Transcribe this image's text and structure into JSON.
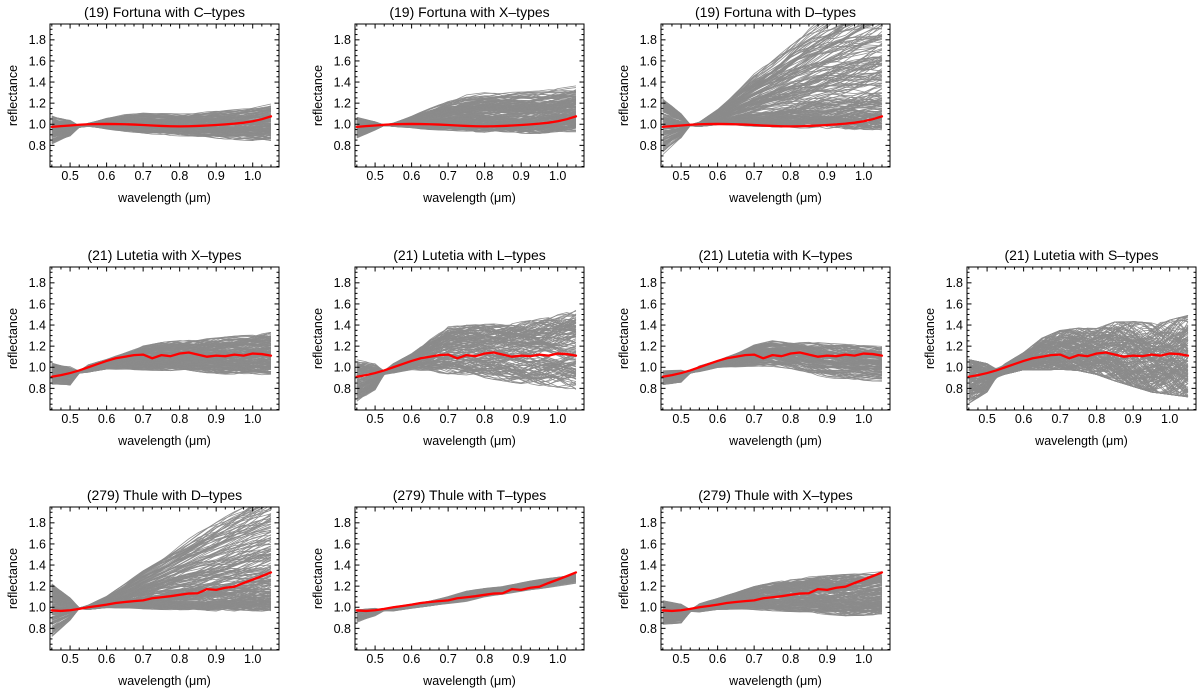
{
  "chart_data": {
    "type": "line",
    "description": "Grid of asteroid reflectance spectra compared with taxonomic-type ensembles; gray curves are ensemble spectra, red curve is the asteroid mean spectrum, all normalized to 1 at 0.55 um",
    "xlabel": "wavelength (μm)",
    "ylabel": "reflectance",
    "xlim": [
      0.445,
      1.072
    ],
    "ylim": [
      0.595,
      1.95
    ],
    "xticks": [
      0.5,
      0.6,
      0.7,
      0.8,
      0.9,
      1.0
    ],
    "yticks": [
      0.8,
      1.0,
      1.2,
      1.4,
      1.6,
      1.8
    ],
    "x_minor_step": 0.025,
    "y_minor_step": 0.05,
    "grid": "off",
    "legend": "none",
    "colors": {
      "mean_curve": "#ff0000",
      "ensemble_curve": "#8b8b8b",
      "frame": "#000000",
      "text": "#000000",
      "background": "#ffffff"
    },
    "x_samples": [
      0.45,
      0.475,
      0.5,
      0.525,
      0.55,
      0.575,
      0.6,
      0.625,
      0.65,
      0.675,
      0.7,
      0.725,
      0.75,
      0.775,
      0.8,
      0.825,
      0.85,
      0.875,
      0.9,
      0.925,
      0.95,
      0.975,
      1.0,
      1.025,
      1.05
    ],
    "envelope_x": [
      0.45,
      0.5,
      0.55,
      0.6,
      0.65,
      0.7,
      0.75,
      0.8,
      0.85,
      0.9,
      0.95,
      1.0,
      1.05
    ],
    "mean_curves": {
      "fortuna": [
        0.975,
        0.982,
        0.988,
        0.995,
        1.0,
        1.002,
        1.003,
        1.002,
        1.0,
        0.997,
        0.993,
        0.988,
        0.984,
        0.981,
        0.98,
        0.981,
        0.984,
        0.988,
        0.993,
        0.999,
        1.006,
        1.015,
        1.028,
        1.048,
        1.075
      ],
      "lutetia": [
        0.91,
        0.925,
        0.945,
        0.97,
        1.0,
        1.03,
        1.06,
        1.085,
        1.1,
        1.115,
        1.12,
        1.085,
        1.115,
        1.105,
        1.13,
        1.14,
        1.12,
        1.1,
        1.11,
        1.105,
        1.12,
        1.11,
        1.13,
        1.125,
        1.11
      ],
      "thule": [
        0.97,
        0.965,
        0.972,
        0.985,
        1.0,
        1.012,
        1.025,
        1.04,
        1.05,
        1.058,
        1.065,
        1.085,
        1.095,
        1.105,
        1.118,
        1.13,
        1.133,
        1.172,
        1.165,
        1.185,
        1.195,
        1.23,
        1.262,
        1.295,
        1.33
      ]
    },
    "plots": [
      {
        "title": "(19) Fortuna with C–types",
        "row": 0,
        "col": 0,
        "mean": "fortuna",
        "band_min": [
          0.81,
          0.89,
          0.98,
          0.96,
          0.94,
          0.925,
          0.91,
          0.9,
          0.89,
          0.88,
          0.87,
          0.86,
          0.85
        ],
        "band_max": [
          1.07,
          1.03,
          1.01,
          1.055,
          1.085,
          1.1,
          1.095,
          1.09,
          1.1,
          1.115,
          1.13,
          1.155,
          1.18
        ],
        "n_curves": 150,
        "bias": 1.0,
        "wiggle": 0.1,
        "seed": 101
      },
      {
        "title": "(19) Fortuna with X–types",
        "row": 0,
        "col": 1,
        "mean": "fortuna",
        "band_min": [
          0.88,
          0.95,
          0.98,
          0.97,
          0.96,
          0.955,
          0.95,
          0.945,
          0.94,
          0.93,
          0.935,
          0.94,
          0.95
        ],
        "band_max": [
          1.06,
          1.02,
          1.01,
          1.07,
          1.14,
          1.21,
          1.26,
          1.28,
          1.28,
          1.285,
          1.295,
          1.315,
          1.34
        ],
        "n_curves": 200,
        "bias": 1.25,
        "wiggle": 0.1,
        "seed": 202
      },
      {
        "title": "(19) Fortuna with D–types",
        "row": 0,
        "col": 2,
        "mean": "fortuna",
        "band_min": [
          0.73,
          0.87,
          0.98,
          1.0,
          1.0,
          1.0,
          1.0,
          1.0,
          1.0,
          1.0,
          1.0,
          1.0,
          1.0
        ],
        "band_max": [
          1.22,
          1.09,
          1.02,
          1.14,
          1.3,
          1.46,
          1.6,
          1.75,
          1.88,
          2.0,
          2.1,
          2.2,
          2.3
        ],
        "n_curves": 220,
        "bias": 1.9,
        "wiggle": 0.05,
        "seed": 303
      },
      {
        "title": "(21) Lutetia with X–types",
        "row": 1,
        "col": 0,
        "mean": "lutetia",
        "band_min": [
          0.85,
          0.84,
          0.955,
          0.985,
          0.99,
          0.985,
          0.98,
          0.98,
          0.975,
          0.955,
          0.95,
          0.95,
          0.95
        ],
        "band_max": [
          1.03,
          1.0,
          1.02,
          1.07,
          1.13,
          1.19,
          1.22,
          1.24,
          1.25,
          1.26,
          1.275,
          1.29,
          1.31
        ],
        "n_curves": 180,
        "bias": 1.05,
        "wiggle": 0.12,
        "seed": 404
      },
      {
        "title": "(21) Lutetia with L–types",
        "row": 1,
        "col": 1,
        "mean": "lutetia",
        "band_min": [
          0.7,
          0.8,
          0.95,
          0.985,
          0.975,
          0.96,
          0.945,
          0.925,
          0.9,
          0.875,
          0.855,
          0.84,
          0.83
        ],
        "band_max": [
          1.05,
          1.02,
          1.03,
          1.12,
          1.25,
          1.36,
          1.375,
          1.38,
          1.385,
          1.4,
          1.425,
          1.46,
          1.5
        ],
        "n_curves": 150,
        "bias": 0.92,
        "wiggle": 0.14,
        "seed": 505
      },
      {
        "title": "(21) Lutetia with K–types",
        "row": 1,
        "col": 2,
        "mean": "lutetia",
        "band_min": [
          0.84,
          0.86,
          0.96,
          1.0,
          1.01,
          1.02,
          1.02,
          1.0,
          0.955,
          0.92,
          0.9,
          0.89,
          0.885
        ],
        "band_max": [
          0.96,
          0.97,
          1.01,
          1.06,
          1.125,
          1.2,
          1.24,
          1.235,
          1.225,
          1.21,
          1.2,
          1.19,
          1.18
        ],
        "n_curves": 130,
        "bias": 1.0,
        "wiggle": 0.12,
        "seed": 606
      },
      {
        "title": "(21) Lutetia with S–types",
        "row": 1,
        "col": 3,
        "mean": "lutetia",
        "band_min": [
          0.68,
          0.78,
          0.94,
          0.985,
          0.99,
          1.0,
          0.99,
          0.955,
          0.9,
          0.85,
          0.8,
          0.78,
          0.76
        ],
        "band_max": [
          1.05,
          1.02,
          1.03,
          1.13,
          1.26,
          1.33,
          1.35,
          1.345,
          1.4,
          1.4,
          1.385,
          1.41,
          1.45
        ],
        "n_curves": 170,
        "bias": 1.0,
        "wiggle": 0.3,
        "seed": 707
      },
      {
        "title": "(279) Thule with D–types",
        "row": 2,
        "col": 0,
        "mean": "thule",
        "band_min": [
          0.74,
          0.88,
          0.98,
          1.0,
          1.0,
          1.0,
          1.0,
          1.0,
          1.0,
          1.0,
          1.0,
          1.005,
          1.01
        ],
        "band_max": [
          1.2,
          1.08,
          1.02,
          1.1,
          1.22,
          1.35,
          1.46,
          1.57,
          1.68,
          1.79,
          1.9,
          2.0,
          2.1
        ],
        "n_curves": 220,
        "bias": 1.9,
        "wiggle": 0.05,
        "seed": 808
      },
      {
        "title": "(279) Thule with T–types",
        "row": 2,
        "col": 1,
        "mean": "thule",
        "band_min": [
          0.86,
          0.92,
          0.965,
          0.99,
          1.01,
          1.035,
          1.06,
          1.1,
          1.12,
          1.15,
          1.175,
          1.205,
          1.23
        ],
        "band_max": [
          0.98,
          0.99,
          1.005,
          1.03,
          1.06,
          1.1,
          1.15,
          1.18,
          1.2,
          1.23,
          1.26,
          1.29,
          1.315
        ],
        "n_curves": 60,
        "bias": 1.0,
        "wiggle": 0.08,
        "seed": 909
      },
      {
        "title": "(279) Thule with X–types",
        "row": 2,
        "col": 2,
        "mean": "thule",
        "band_min": [
          0.85,
          0.86,
          0.96,
          0.985,
          0.99,
          0.985,
          0.98,
          0.975,
          0.97,
          0.95,
          0.94,
          0.945,
          0.95
        ],
        "band_max": [
          1.05,
          1.02,
          1.03,
          1.08,
          1.13,
          1.185,
          1.22,
          1.25,
          1.27,
          1.28,
          1.29,
          1.3,
          1.315
        ],
        "n_curves": 180,
        "bias": 1.1,
        "wiggle": 0.12,
        "seed": 111
      }
    ]
  }
}
